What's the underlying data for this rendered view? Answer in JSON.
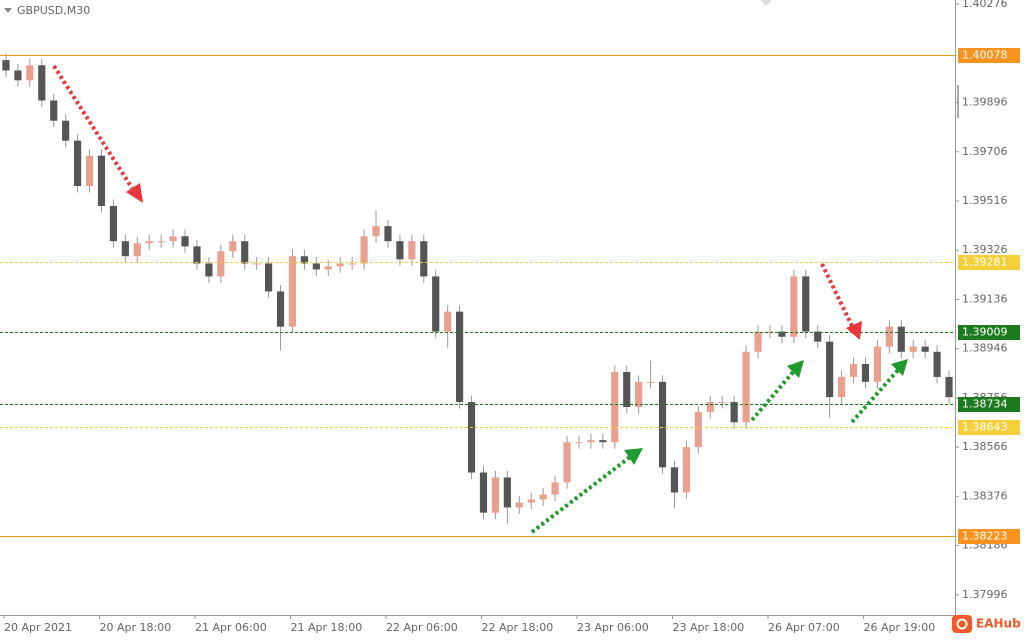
{
  "chart_data": {
    "type": "candlestick",
    "title": "GBPUSD,M30",
    "categories": [
      "20 Apr 2021",
      null,
      null,
      null,
      null,
      null,
      null,
      null,
      "20 Apr 18:00",
      null,
      null,
      null,
      null,
      null,
      null,
      null,
      "21 Apr 06:00",
      null,
      null,
      null,
      null,
      null,
      null,
      null,
      "21 Apr 18:00",
      null,
      null,
      null,
      null,
      null,
      null,
      null,
      "22 Apr 06:00",
      null,
      null,
      null,
      null,
      null,
      null,
      null,
      "22 Apr 18:00",
      null,
      null,
      null,
      null,
      null,
      null,
      null,
      "23 Apr 06:00",
      null,
      null,
      null,
      null,
      null,
      null,
      null,
      "23 Apr 18:00",
      null,
      null,
      null,
      null,
      null,
      null,
      null,
      "26 Apr 07:00",
      null,
      null,
      null,
      null,
      null,
      null,
      null,
      "26 Apr 19:00",
      null,
      null,
      null,
      null,
      null,
      null,
      null
    ],
    "open": [
      1.4006,
      1.4002,
      1.39982,
      1.4004,
      1.39904,
      1.39826,
      1.39749,
      1.39574,
      1.39691,
      1.39497,
      1.39361,
      1.39303,
      1.39353,
      1.39361,
      1.39361,
      1.3938,
      1.39341,
      1.39275,
      1.39225,
      1.39322,
      1.39361,
      1.39275,
      1.39275,
      1.39167,
      1.39031,
      1.39303,
      1.39275,
      1.39252,
      1.39264,
      1.39275,
      1.39275,
      1.3938,
      1.39419,
      1.39361,
      1.39291,
      1.39361,
      1.39225,
      1.39012,
      1.39089,
      1.3874,
      1.38468,
      1.38313,
      1.38449,
      1.38333,
      1.38352,
      1.38364,
      1.38383,
      1.3843,
      1.38585,
      1.38585,
      1.38593,
      1.38585,
      1.38856,
      1.38721,
      1.38818,
      1.38818,
      1.38488,
      1.38391,
      1.38566,
      1.38701,
      1.3874,
      1.3874,
      1.38662,
      1.38934,
      1.39012,
      1.39012,
      1.38992,
      1.39225,
      1.39012,
      1.38973,
      1.38759,
      1.38837,
      1.38887,
      1.38818,
      1.38954,
      1.39031,
      1.38934,
      1.38954,
      1.38934,
      1.38837
    ],
    "high": [
      1.40085,
      1.40045,
      1.40065,
      1.40065,
      1.39929,
      1.39851,
      1.39774,
      1.39716,
      1.39716,
      1.39522,
      1.39386,
      1.39378,
      1.39386,
      1.39386,
      1.39405,
      1.39405,
      1.39366,
      1.393,
      1.39347,
      1.39386,
      1.39386,
      1.393,
      1.393,
      1.39192,
      1.39328,
      1.39328,
      1.393,
      1.39289,
      1.393,
      1.393,
      1.39405,
      1.3948,
      1.39444,
      1.39386,
      1.39386,
      1.39386,
      1.3925,
      1.39114,
      1.39114,
      1.38765,
      1.38493,
      1.38474,
      1.38474,
      1.38377,
      1.38389,
      1.38408,
      1.38455,
      1.3861,
      1.3861,
      1.38618,
      1.38618,
      1.38881,
      1.38881,
      1.38843,
      1.389,
      1.38843,
      1.38513,
      1.38591,
      1.38726,
      1.38765,
      1.38765,
      1.38765,
      1.38959,
      1.39037,
      1.39037,
      1.39037,
      1.3925,
      1.3925,
      1.39037,
      1.38998,
      1.38862,
      1.38912,
      1.38912,
      1.38979,
      1.39056,
      1.39056,
      1.38979,
      1.38979,
      1.38959,
      1.38862
    ],
    "low": [
      1.39995,
      1.39957,
      1.39957,
      1.39879,
      1.39801,
      1.39724,
      1.39549,
      1.39549,
      1.39472,
      1.39336,
      1.39278,
      1.39278,
      1.39328,
      1.39336,
      1.39336,
      1.39316,
      1.3925,
      1.392,
      1.392,
      1.39297,
      1.3925,
      1.3925,
      1.39142,
      1.3894,
      1.39006,
      1.3925,
      1.39227,
      1.39227,
      1.39239,
      1.3925,
      1.3925,
      1.39355,
      1.39336,
      1.39266,
      1.39266,
      1.392,
      1.38987,
      1.3895,
      1.38715,
      1.38443,
      1.38288,
      1.38288,
      1.3827,
      1.38308,
      1.38327,
      1.38339,
      1.38358,
      1.38405,
      1.3856,
      1.3856,
      1.3856,
      1.3856,
      1.38696,
      1.38696,
      1.38793,
      1.38463,
      1.3833,
      1.38366,
      1.38541,
      1.38676,
      1.38715,
      1.38637,
      1.38637,
      1.38909,
      1.38987,
      1.38967,
      1.38967,
      1.38987,
      1.38948,
      1.3868,
      1.38734,
      1.38812,
      1.38793,
      1.38793,
      1.38929,
      1.38909,
      1.38909,
      1.38909,
      1.38812,
      1.38734
    ],
    "close": [
      1.4002,
      1.39982,
      1.4004,
      1.39904,
      1.39826,
      1.39749,
      1.39574,
      1.39691,
      1.39497,
      1.39361,
      1.39303,
      1.39353,
      1.39361,
      1.39361,
      1.3938,
      1.39341,
      1.39275,
      1.39225,
      1.39322,
      1.39361,
      1.39275,
      1.39275,
      1.39167,
      1.39031,
      1.39303,
      1.39275,
      1.39252,
      1.39264,
      1.39275,
      1.39275,
      1.3938,
      1.39419,
      1.39361,
      1.39291,
      1.39361,
      1.39225,
      1.39012,
      1.39089,
      1.3874,
      1.38468,
      1.38313,
      1.38449,
      1.38333,
      1.38352,
      1.38364,
      1.38383,
      1.3843,
      1.38585,
      1.38585,
      1.38593,
      1.38585,
      1.38856,
      1.38721,
      1.38818,
      1.38818,
      1.38488,
      1.38391,
      1.38566,
      1.38701,
      1.3874,
      1.3874,
      1.38662,
      1.38934,
      1.39012,
      1.39012,
      1.38992,
      1.39225,
      1.39012,
      1.38973,
      1.38759,
      1.38837,
      1.38887,
      1.38818,
      1.38954,
      1.39031,
      1.38934,
      1.38954,
      1.38934,
      1.38837,
      1.38759
    ],
    "up_color": "#e9a08f",
    "down_color": "#555555",
    "ylim": [
      1.37918,
      1.40292
    ],
    "yticks": [
      1.40276,
      1.39896,
      1.39706,
      1.39516,
      1.39326,
      1.39136,
      1.38946,
      1.38756,
      1.38566,
      1.38376,
      1.38186,
      1.37996
    ],
    "grid": false,
    "levels": [
      {
        "value": 1.40078,
        "color": "#f7931e",
        "style": "solid",
        "text_color": "#ffffff"
      },
      {
        "value": 1.39281,
        "color": "#f5cf3a",
        "style": "dashed",
        "text_color": "#ffffff"
      },
      {
        "value": 1.39009,
        "color": "#1e7a1e",
        "style": "dashed",
        "text_color": "#ffffff"
      },
      {
        "value": 1.38734,
        "color": "#1e7a1e",
        "style": "dashed",
        "text_color": "#ffffff"
      },
      {
        "value": 1.38643,
        "color": "#f5cf3a",
        "style": "dashed",
        "text_color": "#ffffff"
      },
      {
        "value": 1.38223,
        "color": "#f7931e",
        "style": "solid",
        "text_color": "#ffffff"
      }
    ]
  },
  "brand": "EAHub"
}
